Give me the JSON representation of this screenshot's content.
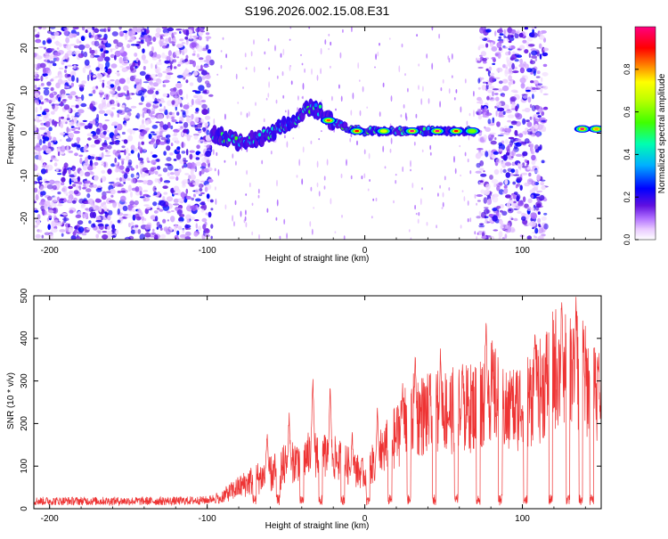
{
  "title": "S196.2026.002.15.08.E31",
  "chart_data": [
    {
      "type": "heatmap",
      "xlabel": "Height of straight line (km)",
      "ylabel": "Frequency (Hz)",
      "xlim": [
        -210,
        150
      ],
      "ylim": [
        -25,
        25
      ],
      "xticks": [
        -200,
        -100,
        0,
        100
      ],
      "yticks": [
        -20,
        -10,
        0,
        10,
        20
      ],
      "colorbar": {
        "label": "Normalized spectral amplitude",
        "range": [
          0.0,
          1.0
        ],
        "ticks": [
          0.0,
          0.2,
          0.4,
          0.6,
          0.8
        ],
        "tick_labels": [
          "0.0",
          "0.2",
          "0.4",
          "0.6",
          "0.8"
        ],
        "colors": [
          "#ffffff",
          "#e8c8ff",
          "#b070ff",
          "#6010e0",
          "#0000ff",
          "#00c0ff",
          "#00ff80",
          "#80ff00",
          "#ffff00",
          "#ff8000",
          "#ff0000",
          "#ff00a0"
        ]
      },
      "noise_regions_km": [
        [
          -210,
          -97
        ],
        [
          72,
          115
        ]
      ],
      "signal_track": [
        {
          "x": -97,
          "y": 0
        },
        {
          "x": -80,
          "y": -2
        },
        {
          "x": -65,
          "y": -1
        },
        {
          "x": -50,
          "y": 2
        },
        {
          "x": -35,
          "y": 6
        },
        {
          "x": -28,
          "y": 5
        },
        {
          "x": -22,
          "y": 3
        },
        {
          "x": -10,
          "y": 1
        },
        {
          "x": 0,
          "y": 0.5
        },
        {
          "x": 20,
          "y": 0.5
        },
        {
          "x": 40,
          "y": 0.5
        },
        {
          "x": 60,
          "y": 0.5
        },
        {
          "x": 70,
          "y": 0.5
        },
        {
          "x": 115,
          "y": 1
        },
        {
          "x": 150,
          "y": 1
        }
      ],
      "peaks": [
        {
          "x": -23,
          "y": 3,
          "a": 0.85
        },
        {
          "x": -5,
          "y": 0.5,
          "a": 0.9
        },
        {
          "x": 12,
          "y": 0.5,
          "a": 0.7
        },
        {
          "x": 30,
          "y": 0.5,
          "a": 1.0
        },
        {
          "x": 46,
          "y": 0.5,
          "a": 1.0
        },
        {
          "x": 58,
          "y": 0.5,
          "a": 0.9
        },
        {
          "x": 68,
          "y": 0.5,
          "a": 0.6
        },
        {
          "x": 138,
          "y": 1,
          "a": 1.0
        },
        {
          "x": 147,
          "y": 1,
          "a": 0.8
        }
      ]
    },
    {
      "type": "line",
      "xlabel": "Height of straight line (km)",
      "ylabel": "SNR (10 * v/v)",
      "xlim": [
        -210,
        150
      ],
      "ylim": [
        0,
        500
      ],
      "xticks": [
        -200,
        -100,
        0,
        100
      ],
      "yticks": [
        0,
        100,
        200,
        300,
        400,
        500
      ],
      "color": "#ee3333",
      "x": [
        -210,
        -180,
        -150,
        -120,
        -100,
        -90,
        -80,
        -70,
        -60,
        -50,
        -40,
        -30,
        -20,
        -10,
        0,
        10,
        20,
        30,
        40,
        50,
        60,
        70,
        80,
        90,
        100,
        110,
        120,
        130,
        140,
        150
      ],
      "y": [
        18,
        18,
        18,
        18,
        20,
        30,
        50,
        70,
        80,
        100,
        120,
        130,
        120,
        100,
        80,
        130,
        170,
        220,
        220,
        230,
        230,
        240,
        280,
        220,
        250,
        270,
        330,
        340,
        300,
        270
      ],
      "spikes": [
        {
          "x": -62,
          "y": 180
        },
        {
          "x": -48,
          "y": 220
        },
        {
          "x": -33,
          "y": 310
        },
        {
          "x": -22,
          "y": 280
        },
        {
          "x": -8,
          "y": 170
        },
        {
          "x": 8,
          "y": 230
        },
        {
          "x": 24,
          "y": 290
        },
        {
          "x": 32,
          "y": 370
        },
        {
          "x": 48,
          "y": 380
        },
        {
          "x": 62,
          "y": 340
        },
        {
          "x": 77,
          "y": 440
        },
        {
          "x": 93,
          "y": 300
        },
        {
          "x": 108,
          "y": 420
        },
        {
          "x": 125,
          "y": 500
        },
        {
          "x": 134,
          "y": 490
        },
        {
          "x": 138,
          "y": 520
        },
        {
          "x": 146,
          "y": 320
        }
      ],
      "dips": [
        -92,
        -70,
        -55,
        -40,
        -28,
        -14,
        2,
        16,
        28,
        44,
        58,
        72,
        86,
        102,
        118,
        129,
        137,
        144
      ]
    }
  ]
}
